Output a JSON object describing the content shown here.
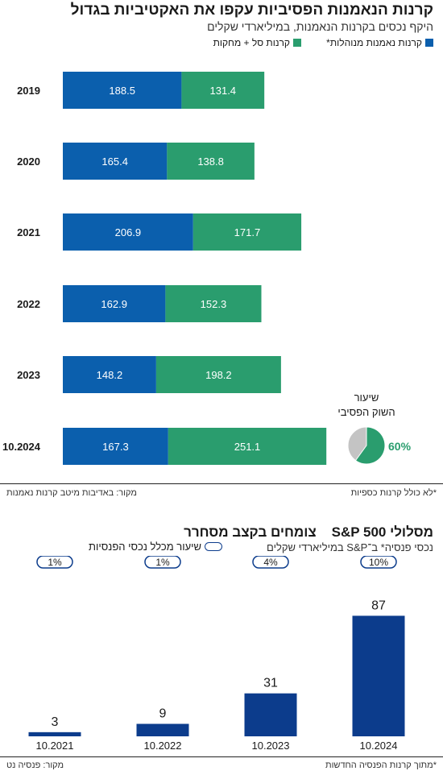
{
  "chart_data": [
    {
      "type": "bar",
      "orientation": "horizontal",
      "stacked": true,
      "title": "קרנות הנאמנות הפסיביות עקפו את האקטיביות בגדול",
      "subtitle": "היקף נכסים בקרנות הנאמנות, במיליארדי שקלים",
      "categories": [
        "2019",
        "2020",
        "2021",
        "2022",
        "2023",
        "10.2024"
      ],
      "series": [
        {
          "name": "קרנות נאמנות מנוהלות*",
          "color": "#0b5fad",
          "values": [
            188.5,
            165.4,
            206.9,
            162.9,
            148.2,
            167.3
          ]
        },
        {
          "name": "קרנות סל + מחקות",
          "color": "#2a9d6e",
          "values": [
            131.4,
            138.8,
            171.7,
            152.3,
            198.2,
            251.1
          ]
        }
      ],
      "legend_position": "top-right",
      "pie": {
        "title_line1": "שיעור",
        "title_line2": "השוק הפסיבי",
        "value": 60,
        "value_label": "60%",
        "color": "#2a9d6e",
        "rest_color": "#c4c4c4"
      },
      "notes": {
        "left": "*לא כולל קרנות כספיות",
        "right": "מקור: באדיבות מיטב קרנות נאמנות"
      }
    },
    {
      "type": "bar",
      "orientation": "vertical",
      "title_main": "צומחים בקצב מסחרר",
      "title_side": "מסלולי S&P 500",
      "subtitle": "נכסי פנסיה* ב־S&P במיליארדי שקלים",
      "legend_label": "שיעור מכלל נכסי הפנסיות",
      "categories": [
        "10.2021",
        "10.2022",
        "10.2023",
        "10.2024"
      ],
      "values": [
        3,
        9,
        31,
        87
      ],
      "value_labels": [
        "3",
        "9",
        "31",
        "87"
      ],
      "share_labels": [
        "1%",
        "1%",
        "4%",
        "10%"
      ],
      "color": "#0c3c8c",
      "notes": {
        "left": "*מתוך קרנות הפנסיה החדשות",
        "right": "מקור: פנסיה נט"
      }
    }
  ]
}
